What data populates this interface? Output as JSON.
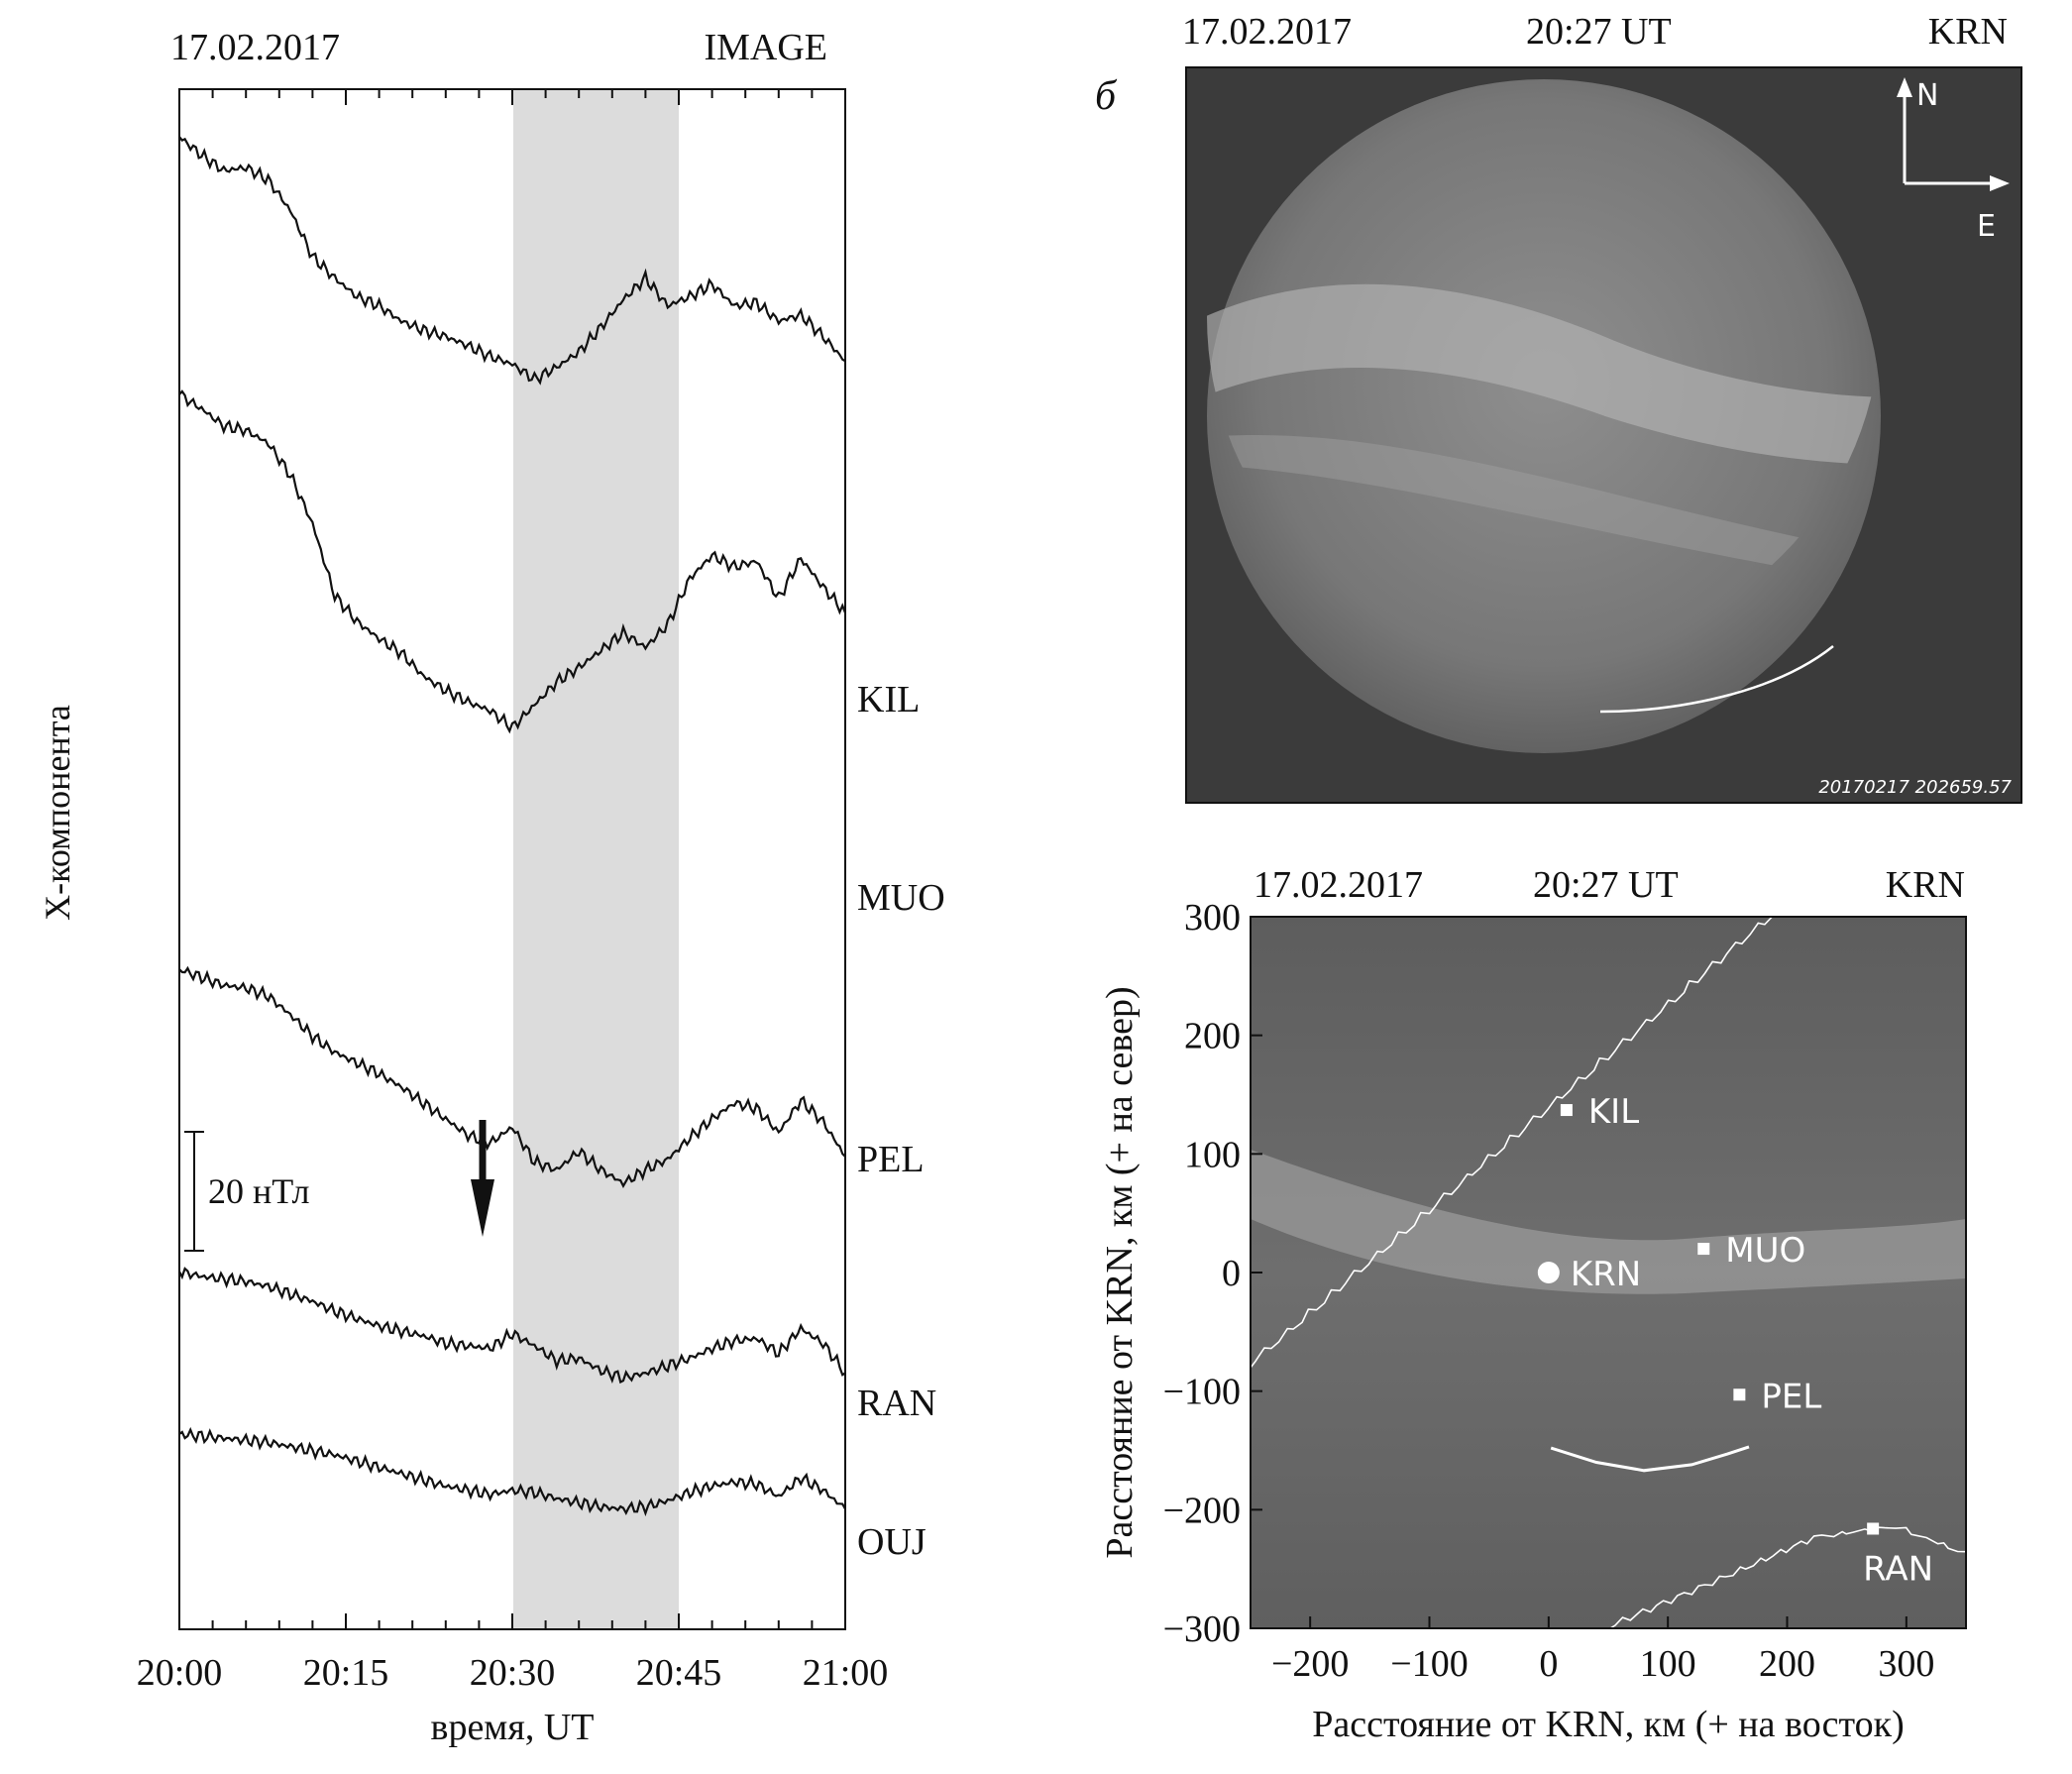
{
  "panel_a": {
    "date": "17.02.2017",
    "source": "IMAGE",
    "ylabel": "X-компонента",
    "xlabel": "время, UT",
    "scale_bar_label": "20 нТл",
    "chart_data": {
      "type": "line",
      "title": "",
      "xlabel": "время, UT",
      "ylabel": "X-компонента",
      "x_ticks": [
        "20:00",
        "20:15",
        "20:30",
        "20:45",
        "21:00"
      ],
      "xlim_minutes": [
        0,
        60
      ],
      "highlight_interval": [
        "20:30",
        "20:45"
      ],
      "arrow_time": "20:27",
      "scale_bar": "20 нТл",
      "series_time_minutes": [
        0,
        2,
        4,
        6,
        8,
        10,
        12,
        14,
        16,
        18,
        20,
        22,
        24,
        26,
        28,
        30,
        32,
        34,
        36,
        38,
        40,
        42,
        44,
        46,
        48,
        50,
        52,
        54,
        56,
        58,
        60
      ],
      "series": [
        {
          "name": "KIL",
          "values": [
            0,
            -12,
            -22,
            -20,
            -28,
            -48,
            -78,
            -92,
            -104,
            -110,
            -120,
            -126,
            -130,
            -136,
            -143,
            -148,
            -158,
            -150,
            -140,
            -124,
            -106,
            -92,
            -110,
            -104,
            -96,
            -110,
            -108,
            -120,
            -116,
            -130,
            -146
          ]
        },
        {
          "name": "MUO",
          "values": [
            0,
            -10,
            -22,
            -25,
            -34,
            -56,
            -90,
            -140,
            -158,
            -170,
            -180,
            -196,
            -206,
            -214,
            -220,
            -232,
            -216,
            -200,
            -190,
            -178,
            -166,
            -176,
            -160,
            -128,
            -112,
            -120,
            -116,
            -142,
            -114,
            -134,
            -152
          ]
        },
        {
          "name": "PEL",
          "values": [
            0,
            -6,
            -12,
            -14,
            -20,
            -34,
            -50,
            -62,
            -70,
            -78,
            -88,
            -100,
            -112,
            -124,
            -130,
            -118,
            -144,
            -150,
            -136,
            -150,
            -160,
            -150,
            -142,
            -126,
            -112,
            -100,
            -104,
            -122,
            -98,
            -114,
            -140
          ]
        },
        {
          "name": "RAN",
          "values": [
            0,
            -4,
            -6,
            -8,
            -12,
            -18,
            -24,
            -32,
            -38,
            -44,
            -48,
            -52,
            -58,
            -60,
            -62,
            -50,
            -60,
            -72,
            -70,
            -80,
            -86,
            -82,
            -76,
            -70,
            -62,
            -56,
            -54,
            -66,
            -46,
            -58,
            -82
          ]
        },
        {
          "name": "OUJ",
          "values": [
            0,
            -2,
            -4,
            -6,
            -8,
            -12,
            -16,
            -20,
            -26,
            -32,
            -38,
            -44,
            -50,
            -54,
            -58,
            -54,
            -56,
            -62,
            -66,
            -70,
            -72,
            -70,
            -64,
            -56,
            -50,
            -46,
            -48,
            -60,
            -42,
            -54,
            -72
          ]
        }
      ]
    }
  },
  "panel_b": {
    "letter": "б",
    "date": "17.02.2017",
    "time": "20:27 UT",
    "station": "KRN",
    "compass_north": "N",
    "compass_east": "E",
    "image_stamp": "20170217 202659.57"
  },
  "panel_c": {
    "date": "17.02.2017",
    "time": "20:27 UT",
    "station": "KRN",
    "xlabel": "Расстояние от KRN, км (+ на восток)",
    "ylabel": "Расстояние от KRN, км (+ на север)",
    "chart_data": {
      "type": "scatter",
      "title": "",
      "xlabel": "Расстояние от KRN, км (+ на восток)",
      "ylabel": "Расстояние от KRN, км (+ на север)",
      "xlim": [
        -250,
        350
      ],
      "ylim": [
        -300,
        300
      ],
      "x_ticks": [
        -200,
        -100,
        0,
        100,
        200,
        300
      ],
      "x_tick_labels": [
        "−200",
        "−100",
        "0",
        "100",
        "200",
        "300"
      ],
      "y_ticks": [
        300,
        200,
        100,
        0,
        -100,
        -200,
        -300
      ],
      "y_tick_labels": [
        "300",
        "200",
        "100",
        "0",
        "−100",
        "−200",
        "−300"
      ],
      "stations": [
        {
          "name": "KIL",
          "x": 15,
          "y": 137,
          "marker": "square"
        },
        {
          "name": "MUO",
          "x": 130,
          "y": 20,
          "marker": "square"
        },
        {
          "name": "KRN",
          "x": 0,
          "y": 0,
          "marker": "circle"
        },
        {
          "name": "PEL",
          "x": 160,
          "y": -103,
          "marker": "square"
        },
        {
          "name": "RAN",
          "x": 272,
          "y": -216,
          "marker": "square"
        }
      ],
      "arc_km": [
        [
          2,
          -148
        ],
        [
          40,
          -160
        ],
        [
          80,
          -167
        ],
        [
          120,
          -162
        ],
        [
          150,
          -153
        ],
        [
          168,
          -147
        ]
      ]
    }
  }
}
